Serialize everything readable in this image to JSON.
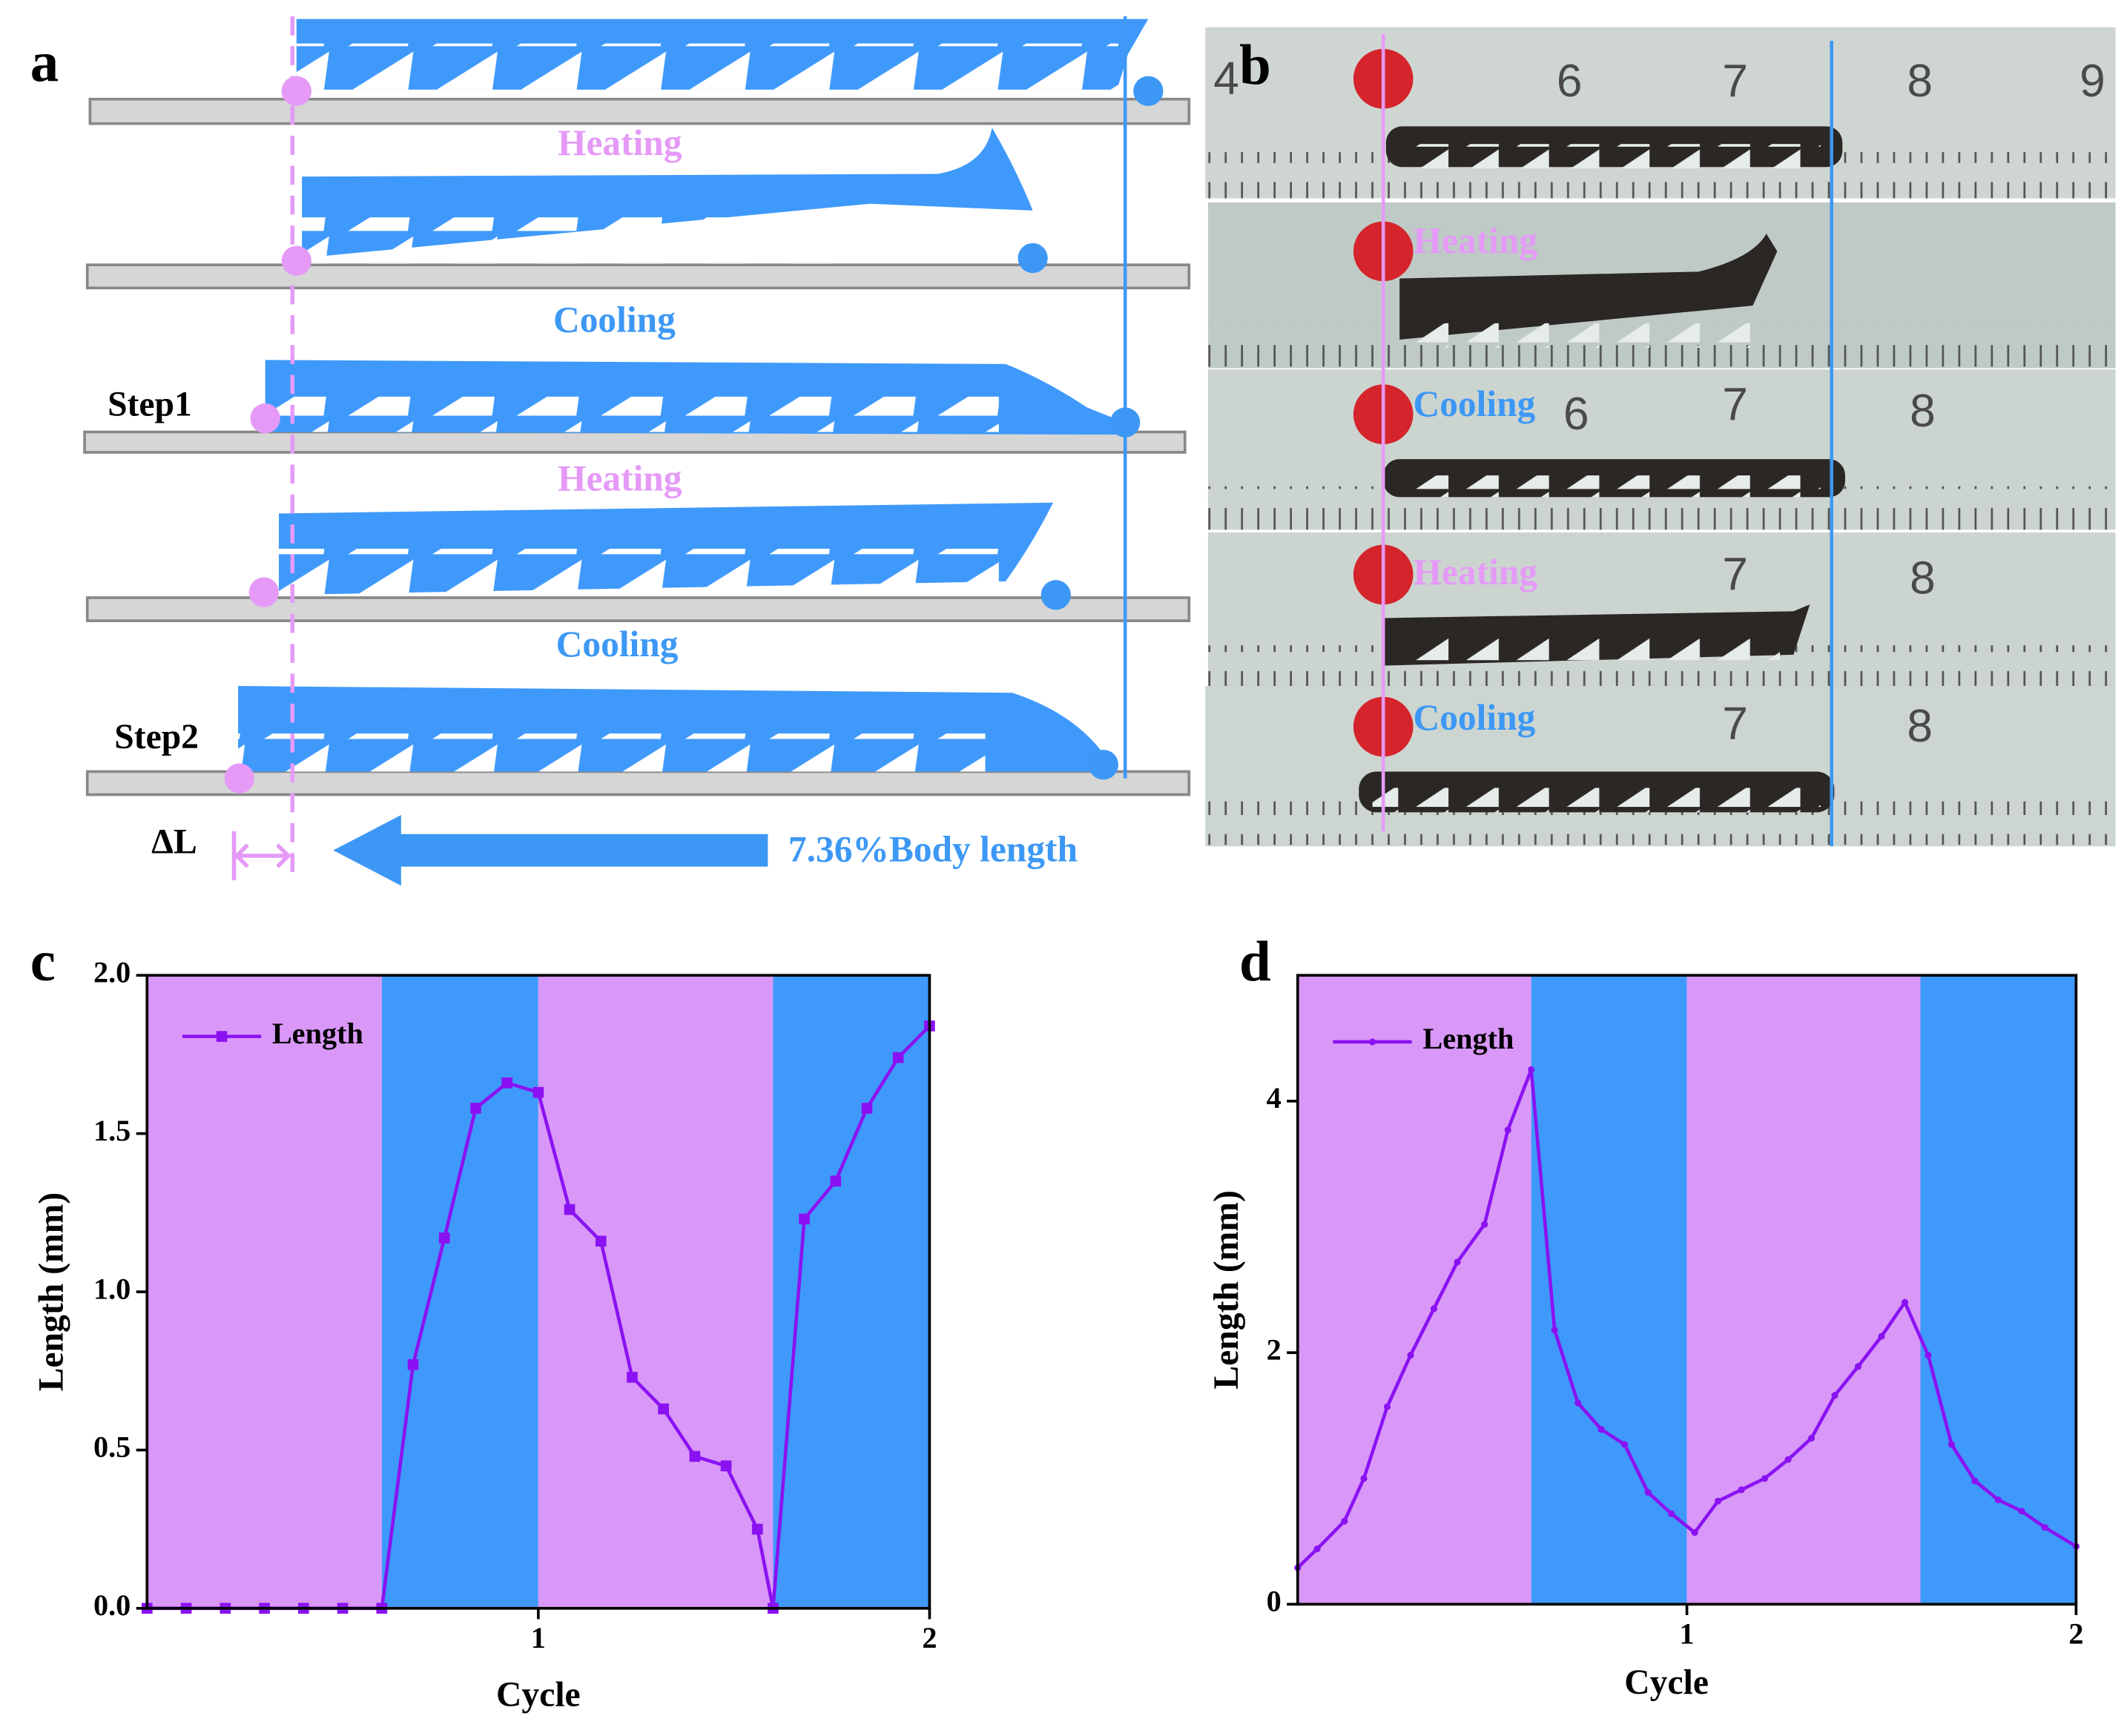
{
  "panel_labels": [
    "a",
    "b",
    "c",
    "d"
  ],
  "diagram_a": {
    "states": [
      "Heating",
      "Cooling",
      "Heating",
      "Cooling"
    ],
    "steps": [
      "Step1",
      "Step2"
    ],
    "delta_label": "ΔL",
    "displacement": "7.36%Body length"
  },
  "photo_b": {
    "ruler_numbers": [
      "4",
      "6",
      "7",
      "8",
      "9"
    ],
    "states": [
      "Heating",
      "Cooling",
      "Heating",
      "Cooling"
    ]
  },
  "chart_data": [
    {
      "type": "line",
      "x_label": "Cycle",
      "y_label": "Length (mm)",
      "xlim": [
        0,
        2
      ],
      "xticks": [
        1,
        2
      ],
      "ylim": [
        0,
        2
      ],
      "yticks": [
        {
          "value": 0,
          "label": "0.0"
        },
        {
          "value": 0.5,
          "label": "0.5"
        },
        {
          "value": 1,
          "label": "1.0"
        },
        {
          "value": 1.5,
          "label": "1.5"
        },
        {
          "value": 2,
          "label": "2.0"
        }
      ],
      "legend": "upper left",
      "bands": [
        {
          "start": 0,
          "end": 0.6,
          "color": "#d998f8"
        },
        {
          "start": 0.6,
          "end": 1.0,
          "color": "#3f99fb"
        },
        {
          "start": 1.0,
          "end": 1.6,
          "color": "#d998f8"
        },
        {
          "start": 1.6,
          "end": 2.0,
          "color": "#3f99fb"
        }
      ],
      "x": [
        0,
        0.1,
        0.2,
        0.3,
        0.4,
        0.5,
        0.6,
        0.68,
        0.76,
        0.84,
        0.92,
        1.0,
        1.08,
        1.16,
        1.24,
        1.32,
        1.4,
        1.48,
        1.56,
        1.6,
        1.68,
        1.76,
        1.84,
        1.92,
        2.0
      ],
      "series": [
        {
          "name": "Length",
          "color": "#8a12f2",
          "marker": "square",
          "values": [
            0,
            0,
            0,
            0,
            0,
            0,
            0,
            0.77,
            1.17,
            1.58,
            1.66,
            1.63,
            1.26,
            1.16,
            0.73,
            0.63,
            0.48,
            0.45,
            0.25,
            0,
            1.23,
            1.35,
            1.58,
            1.74,
            1.84
          ]
        }
      ]
    },
    {
      "type": "line",
      "x_label": "Cycle",
      "y_label": "Length (mm)",
      "xlim": [
        0,
        2
      ],
      "xticks": [
        1,
        2
      ],
      "ylim": [
        0,
        5
      ],
      "yticks": [
        0,
        2,
        4
      ],
      "legend": "upper left",
      "bands": [
        {
          "start": 0,
          "end": 0.6,
          "color": "#d998f8"
        },
        {
          "start": 0.6,
          "end": 1.0,
          "color": "#3f99fb"
        },
        {
          "start": 1.0,
          "end": 1.6,
          "color": "#d998f8"
        },
        {
          "start": 1.6,
          "end": 2.0,
          "color": "#3f99fb"
        }
      ],
      "x": [
        0,
        0.05,
        0.12,
        0.17,
        0.23,
        0.29,
        0.35,
        0.41,
        0.48,
        0.54,
        0.6,
        0.66,
        0.72,
        0.78,
        0.84,
        0.9,
        0.96,
        1.02,
        1.08,
        1.14,
        1.2,
        1.26,
        1.32,
        1.38,
        1.44,
        1.5,
        1.56,
        1.62,
        1.68,
        1.74,
        1.8,
        1.86,
        1.92,
        2.0
      ],
      "series": [
        {
          "name": "Length",
          "color": "#8a12f2",
          "marker": "dot",
          "values": [
            0.29,
            0.44,
            0.66,
            1.0,
            1.57,
            1.98,
            2.35,
            2.72,
            3.02,
            3.77,
            4.25,
            2.18,
            1.6,
            1.39,
            1.27,
            0.89,
            0.72,
            0.57,
            0.82,
            0.91,
            1.0,
            1.15,
            1.32,
            1.66,
            1.89,
            2.13,
            2.4,
            1.98,
            1.27,
            0.98,
            0.83,
            0.74,
            0.61,
            0.46
          ]
        }
      ]
    }
  ]
}
